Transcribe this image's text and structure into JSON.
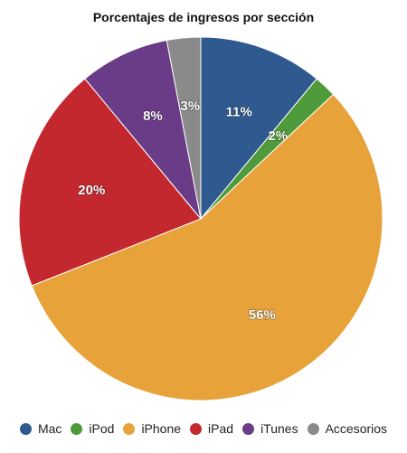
{
  "chart_data": {
    "type": "pie",
    "title": "Porcentajes de ingresos por sección",
    "series": [
      {
        "name": "Mac",
        "value": 11,
        "label": "11%",
        "color": "#2f5a8f"
      },
      {
        "name": "iPod",
        "value": 2,
        "label": "2%",
        "color": "#4f9a3a"
      },
      {
        "name": "iPhone",
        "value": 56,
        "label": "56%",
        "color": "#e8a23a"
      },
      {
        "name": "iPad",
        "value": 20,
        "label": "20%",
        "color": "#c3282e"
      },
      {
        "name": "iTunes",
        "value": 8,
        "label": "8%",
        "color": "#6a3b86"
      },
      {
        "name": "Accesorios",
        "value": 3,
        "label": "3%",
        "color": "#8a8a8a"
      }
    ],
    "legend_position": "bottom"
  }
}
